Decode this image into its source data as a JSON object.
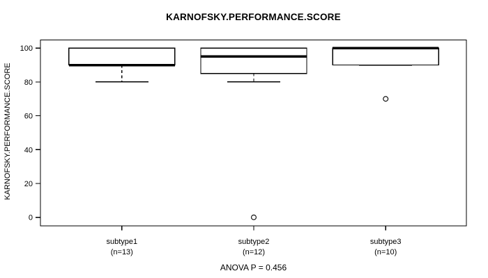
{
  "chart_data": {
    "type": "boxplot",
    "title": "KARNOFSKY.PERFORMANCE.SCORE",
    "ylabel": "KARNOFSKY.PERFORMANCE.SCORE",
    "xlabel": "",
    "yticks": [
      0,
      20,
      40,
      60,
      80,
      100
    ],
    "ylim": [
      0,
      100
    ],
    "grid": false,
    "frame": true,
    "legend": "none",
    "categories": [
      {
        "label": "subtype1",
        "count_label": "(n=13)",
        "n": 13
      },
      {
        "label": "subtype2",
        "count_label": "(n=12)",
        "n": 12
      },
      {
        "label": "subtype3",
        "count_label": "(n=10)",
        "n": 10
      }
    ],
    "boxes": [
      {
        "category": "subtype1",
        "whisker_low": 80,
        "q1": 90,
        "median": 90,
        "q3": 100,
        "whisker_high": 100,
        "outliers": []
      },
      {
        "category": "subtype2",
        "whisker_low": 80,
        "q1": 85,
        "median": 95,
        "q3": 100,
        "whisker_high": 100,
        "outliers": [
          0
        ]
      },
      {
        "category": "subtype3",
        "whisker_low": 90,
        "q1": 90,
        "median": 100,
        "q3": 100,
        "whisker_high": 100,
        "outliers": [
          70
        ]
      }
    ],
    "annotation": "ANOVA P = 0.456",
    "colors": {
      "stroke": "#000000",
      "box_fill": "#ffffff",
      "background": "#ffffff",
      "text": "#000000"
    }
  }
}
